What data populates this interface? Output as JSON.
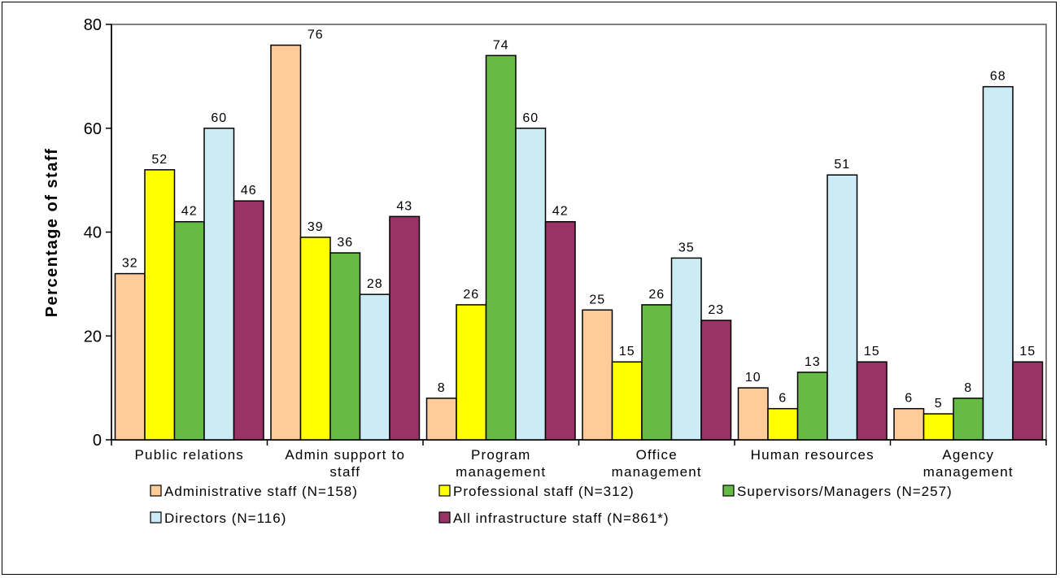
{
  "chart_data": {
    "type": "bar",
    "title": "",
    "xlabel": "",
    "ylabel": "Percentage of staff",
    "ylim": [
      0,
      80
    ],
    "yticks": [
      0,
      20,
      40,
      60,
      80
    ],
    "grid": false,
    "legend_position": "bottom",
    "categories": [
      [
        "Public relations"
      ],
      [
        "Admin support to",
        "staff"
      ],
      [
        "Program",
        "management"
      ],
      [
        "Office",
        "management"
      ],
      [
        "Human resources"
      ],
      [
        "Agency",
        "management"
      ]
    ],
    "series": [
      {
        "name": "Administrative staff (N=158)",
        "color": "#FFCC99",
        "values": [
          32,
          76,
          8,
          25,
          10,
          6
        ]
      },
      {
        "name": "Professional staff (N=312)",
        "color": "#FFFF00",
        "values": [
          52,
          39,
          26,
          15,
          6,
          5
        ]
      },
      {
        "name": "Supervisors/Managers (N=257)",
        "color": "#66BB44",
        "values": [
          42,
          36,
          74,
          26,
          13,
          8
        ]
      },
      {
        "name": "Directors (N=116)",
        "color": "#CCECF5",
        "values": [
          60,
          28,
          60,
          35,
          51,
          68
        ]
      },
      {
        "name": "All infrastructure staff (N=861*)",
        "color": "#993366",
        "values": [
          46,
          43,
          42,
          23,
          15,
          15
        ]
      }
    ]
  }
}
